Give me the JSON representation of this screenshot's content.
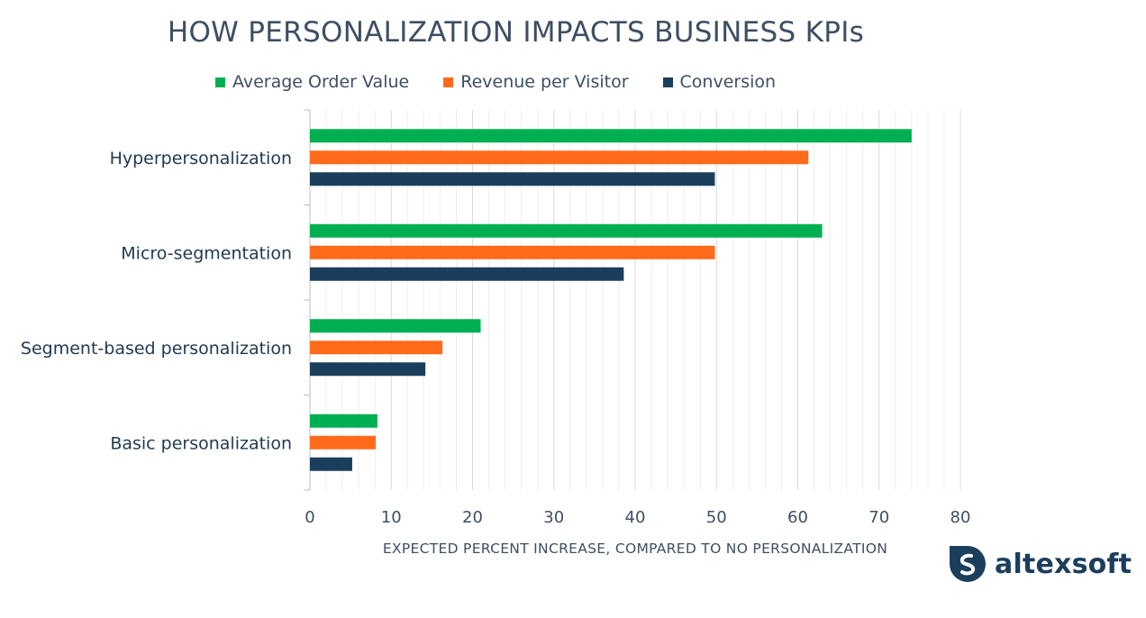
{
  "chart_data": {
    "type": "bar",
    "orientation": "horizontal",
    "title": "HOW PERSONALIZATION IMPACTS BUSINESS KPIs",
    "xlabel": "EXPECTED PERCENT INCREASE, COMPARED TO NO PERSONALIZATION",
    "ylabel": "",
    "xlim": [
      0,
      80
    ],
    "ticks": [
      0,
      10,
      20,
      30,
      40,
      50,
      60,
      70,
      80
    ],
    "tick_labels": [
      "0",
      "10",
      "20",
      "30",
      "40",
      "50",
      "60",
      "70",
      "80"
    ],
    "grid": true,
    "legend_position": "top",
    "categories": [
      "Hyperpersonalization",
      "Micro-segmentation",
      "Segment-based personalization",
      "Basic personalization"
    ],
    "series": [
      {
        "name": "Average Order Value",
        "color": "#00b050",
        "values": [
          74,
          63,
          21,
          8.3
        ]
      },
      {
        "name": "Revenue per Visitor",
        "color": "#ff6b1a",
        "values": [
          61.3,
          49.8,
          16.3,
          8.1
        ]
      },
      {
        "name": "Conversion",
        "color": "#1b3e5c",
        "values": [
          49.8,
          38.6,
          14.2,
          5.2
        ]
      }
    ]
  },
  "logo": {
    "text": "altexsoft",
    "icon": "altexsoft-logo-icon",
    "color": "#1b3e5c"
  }
}
